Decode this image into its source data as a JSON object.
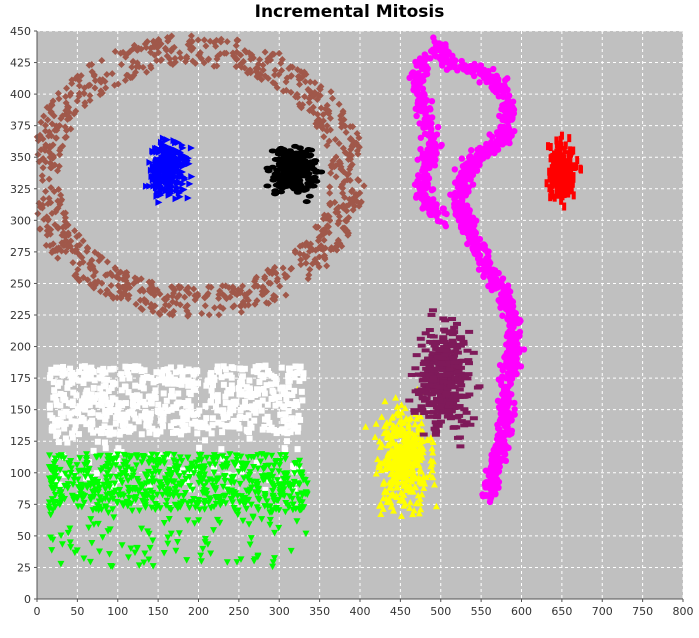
{
  "chart_data": {
    "type": "scatter",
    "title": "Incremental Mitosis",
    "xlabel": "",
    "ylabel": "",
    "xlim": [
      0,
      800
    ],
    "ylim": [
      0,
      450
    ],
    "xticks": [
      0,
      50,
      100,
      150,
      200,
      250,
      300,
      350,
      400,
      450,
      500,
      550,
      600,
      650,
      700,
      750,
      800
    ],
    "yticks": [
      0,
      25,
      50,
      75,
      100,
      125,
      150,
      175,
      200,
      225,
      250,
      275,
      300,
      325,
      350,
      375,
      400,
      425,
      450
    ],
    "grid": true,
    "legend": "none",
    "background": "#c0c0c0",
    "clusters": [
      {
        "shape": "diamond",
        "color": "#a0584a",
        "kind": "ring",
        "cx": 195,
        "cy": 335,
        "rx": 190,
        "ry": 100,
        "width": 22,
        "count": 900
      },
      {
        "shape": "triangle-right",
        "color": "#0000ff",
        "kind": "blob",
        "cx": 162,
        "cy": 340,
        "rx": 40,
        "ry": 38,
        "count": 260
      },
      {
        "shape": "ellipse",
        "color": "#000000",
        "kind": "blob",
        "cx": 318,
        "cy": 340,
        "rx": 45,
        "ry": 33,
        "count": 240
      },
      {
        "shape": "square",
        "color": "#ffffff",
        "kind": "rect",
        "x0": 15,
        "x1": 330,
        "y0": 130,
        "y1": 185,
        "count": 700
      },
      {
        "shape": "triangle-down",
        "color": "#00ff00",
        "kind": "rect",
        "x0": 15,
        "x1": 335,
        "y0": 70,
        "y1": 115,
        "count": 750
      },
      {
        "shape": "triangle-up",
        "color": "#ffff00",
        "kind": "blob",
        "cx": 455,
        "cy": 110,
        "rx": 55,
        "ry": 65,
        "count": 420
      },
      {
        "shape": "rect-h",
        "color": "#7f1a5a",
        "kind": "blob",
        "cx": 505,
        "cy": 175,
        "rx": 55,
        "ry": 70,
        "count": 420
      },
      {
        "shape": "circle",
        "color": "#ff00ff",
        "kind": "band",
        "count": 1200
      },
      {
        "shape": "rect-v",
        "color": "#ff0000",
        "kind": "blob",
        "cx": 650,
        "cy": 340,
        "rx": 30,
        "ry": 40,
        "count": 200
      }
    ]
  }
}
